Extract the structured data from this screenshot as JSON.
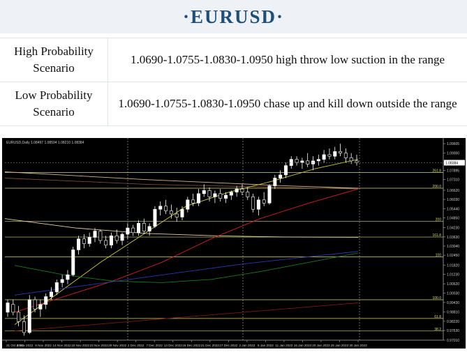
{
  "title": "·EURUSD·",
  "scenarios": [
    {
      "label": "High Probability Scenario",
      "text": "1.0690-1.0755-1.0830-1.0950 high throw low suction in the range"
    },
    {
      "label": "Low Probability Scenario",
      "text": "1.0690-1.0755-1.0830-1.0950 chase up and kill down outside the range"
    }
  ],
  "chart_data": {
    "type": "line",
    "title": "EURUSD,Daily  1.08497 1.08594 1.08210 1.08384",
    "x_tick_labels": [
      "31 Oct 2022",
      "4 Nov 2022",
      "9 Nov 2022",
      "14 Nov 2022",
      "18 Nov 2022",
      "23 Nov 2022",
      "29 Nov 2022",
      "2 Dec 2022",
      "7 Dec 2022",
      "13 Dec 2022",
      "16 Dec 2022",
      "21 Dec 2022",
      "27 Dec 2022",
      "2 Jan 2023",
      "6 Jan 2023",
      "11 Jan 2023",
      "16 Jan 2023",
      "20 Jan 2023",
      "25 Jan 2023",
      "30 Jan 2023"
    ],
    "y_tick_labels": [
      "1.09605",
      "1.09000",
      "1.08384",
      "1.07895",
      "1.07310",
      "1.06620",
      "1.06030",
      "1.05440",
      "1.04850",
      "1.04230",
      "1.03630",
      "1.03040",
      "1.02450",
      "1.01820",
      "1.01230",
      "1.00620",
      "1.00030",
      "0.99430",
      "0.98810",
      "0.98220",
      "0.97630",
      "0.97010"
    ],
    "ylim": [
      0.9701,
      1.0961
    ],
    "last_price": "1.08384",
    "level_labels": [
      {
        "label": "261.8",
        "value": 1.0776
      },
      {
        "label": "200.0",
        "value": 1.0675
      },
      {
        "label": "200",
        "value": 1.0463
      },
      {
        "label": "161.8",
        "value": 1.0362
      },
      {
        "label": "100",
        "value": 1.0235
      },
      {
        "label": "100.0",
        "value": 0.996
      },
      {
        "label": "61.8",
        "value": 0.984
      },
      {
        "label": "38.2",
        "value": 0.976
      }
    ],
    "candles": [
      [
        0.988,
        0.996,
        0.985,
        0.994
      ],
      [
        0.993,
        0.996,
        0.986,
        0.988
      ],
      [
        0.988,
        0.992,
        0.979,
        0.982
      ],
      [
        0.982,
        0.986,
        0.973,
        0.975
      ],
      [
        0.975,
        0.999,
        0.974,
        0.996
      ],
      [
        0.996,
        0.998,
        0.988,
        0.99
      ],
      [
        0.99,
        0.996,
        0.985,
        0.993
      ],
      [
        0.993,
        1.0,
        0.99,
        0.998
      ],
      [
        0.998,
        1.004,
        0.996,
        1.001
      ],
      [
        1.001,
        1.009,
        0.999,
        1.007
      ],
      [
        1.007,
        1.012,
        1.004,
        1.009
      ],
      [
        1.009,
        1.015,
        1.006,
        1.012
      ],
      [
        1.012,
        1.03,
        1.011,
        1.028
      ],
      [
        1.028,
        1.037,
        1.025,
        1.035
      ],
      [
        1.035,
        1.038,
        1.029,
        1.032
      ],
      [
        1.032,
        1.039,
        1.03,
        1.036
      ],
      [
        1.036,
        1.042,
        1.033,
        1.04
      ],
      [
        1.04,
        1.041,
        1.032,
        1.034
      ],
      [
        1.034,
        1.037,
        1.029,
        1.031
      ],
      [
        1.031,
        1.039,
        1.029,
        1.037
      ],
      [
        1.037,
        1.041,
        1.032,
        1.034
      ],
      [
        1.034,
        1.039,
        1.031,
        1.038
      ],
      [
        1.038,
        1.045,
        1.035,
        1.042
      ],
      [
        1.042,
        1.044,
        1.037,
        1.039
      ],
      [
        1.039,
        1.047,
        1.037,
        1.045
      ],
      [
        1.045,
        1.048,
        1.038,
        1.04
      ],
      [
        1.04,
        1.045,
        1.037,
        1.043
      ],
      [
        1.043,
        1.056,
        1.042,
        1.054
      ],
      [
        1.054,
        1.059,
        1.05,
        1.056
      ],
      [
        1.056,
        1.06,
        1.051,
        1.053
      ],
      [
        1.053,
        1.057,
        1.048,
        1.051
      ],
      [
        1.051,
        1.055,
        1.046,
        1.049
      ],
      [
        1.049,
        1.056,
        1.047,
        1.054
      ],
      [
        1.054,
        1.062,
        1.052,
        1.06
      ],
      [
        1.06,
        1.064,
        1.056,
        1.058
      ],
      [
        1.058,
        1.067,
        1.056,
        1.064
      ],
      [
        1.064,
        1.07,
        1.062,
        1.066
      ],
      [
        1.066,
        1.068,
        1.059,
        1.062
      ],
      [
        1.062,
        1.066,
        1.058,
        1.064
      ],
      [
        1.064,
        1.067,
        1.059,
        1.061
      ],
      [
        1.061,
        1.065,
        1.058,
        1.063
      ],
      [
        1.063,
        1.066,
        1.06,
        1.065
      ],
      [
        1.065,
        1.069,
        1.062,
        1.067
      ],
      [
        1.067,
        1.07,
        1.063,
        1.065
      ],
      [
        1.065,
        1.068,
        1.06,
        1.062
      ],
      [
        1.062,
        1.064,
        1.052,
        1.054
      ],
      [
        1.054,
        1.062,
        1.05,
        1.06
      ],
      [
        1.06,
        1.065,
        1.056,
        1.058
      ],
      [
        1.058,
        1.07,
        1.057,
        1.069
      ],
      [
        1.069,
        1.076,
        1.067,
        1.074
      ],
      [
        1.074,
        1.079,
        1.071,
        1.076
      ],
      [
        1.076,
        1.084,
        1.074,
        1.082
      ],
      [
        1.082,
        1.088,
        1.08,
        1.086
      ],
      [
        1.086,
        1.088,
        1.082,
        1.084
      ],
      [
        1.084,
        1.087,
        1.08,
        1.085
      ],
      [
        1.085,
        1.09,
        1.081,
        1.083
      ],
      [
        1.083,
        1.088,
        1.079,
        1.085
      ],
      [
        1.085,
        1.089,
        1.082,
        1.086
      ],
      [
        1.086,
        1.092,
        1.084,
        1.089
      ],
      [
        1.089,
        1.093,
        1.086,
        1.088
      ],
      [
        1.088,
        1.094,
        1.086,
        1.091
      ],
      [
        1.091,
        1.096,
        1.088,
        1.09
      ],
      [
        1.09,
        1.093,
        1.084,
        1.087
      ],
      [
        1.087,
        1.09,
        1.083,
        1.085
      ],
      [
        1.085,
        1.089,
        1.082,
        1.084
      ]
    ],
    "series": [
      {
        "color": "#d2b48c",
        "values": [
          1.078,
          1.0755,
          1.073,
          1.071,
          1.069,
          1.0675
        ]
      },
      {
        "color": "#e6d1a0",
        "values": [
          1.048,
          1.042,
          1.0385,
          1.037,
          1.0362,
          1.036
        ]
      },
      {
        "color": "#7a4a3a",
        "values": [
          1.074,
          1.072,
          1.07,
          1.069,
          1.068,
          1.067
        ]
      },
      {
        "color": "#cccc33",
        "values": [
          0.98,
          1.0,
          1.02,
          1.038,
          1.056,
          1.065,
          1.072,
          1.08,
          1.086
        ]
      },
      {
        "color": "#cc2222",
        "values": [
          0.988,
          0.998,
          1.008,
          1.02,
          1.035,
          1.048,
          1.058,
          1.067
        ]
      },
      {
        "color": "#1a7a1a",
        "values": [
          1.018,
          1.012,
          1.008,
          1.007,
          1.009,
          1.014,
          1.02,
          1.026
        ]
      },
      {
        "color": "#2a3ab0",
        "values": [
          0.999,
          1.004,
          1.009,
          1.014,
          1.019,
          1.023,
          1.027
        ]
      },
      {
        "color": "#7a1a1a",
        "values": [
          0.976,
          0.982,
          0.988,
          0.994
        ]
      }
    ]
  }
}
